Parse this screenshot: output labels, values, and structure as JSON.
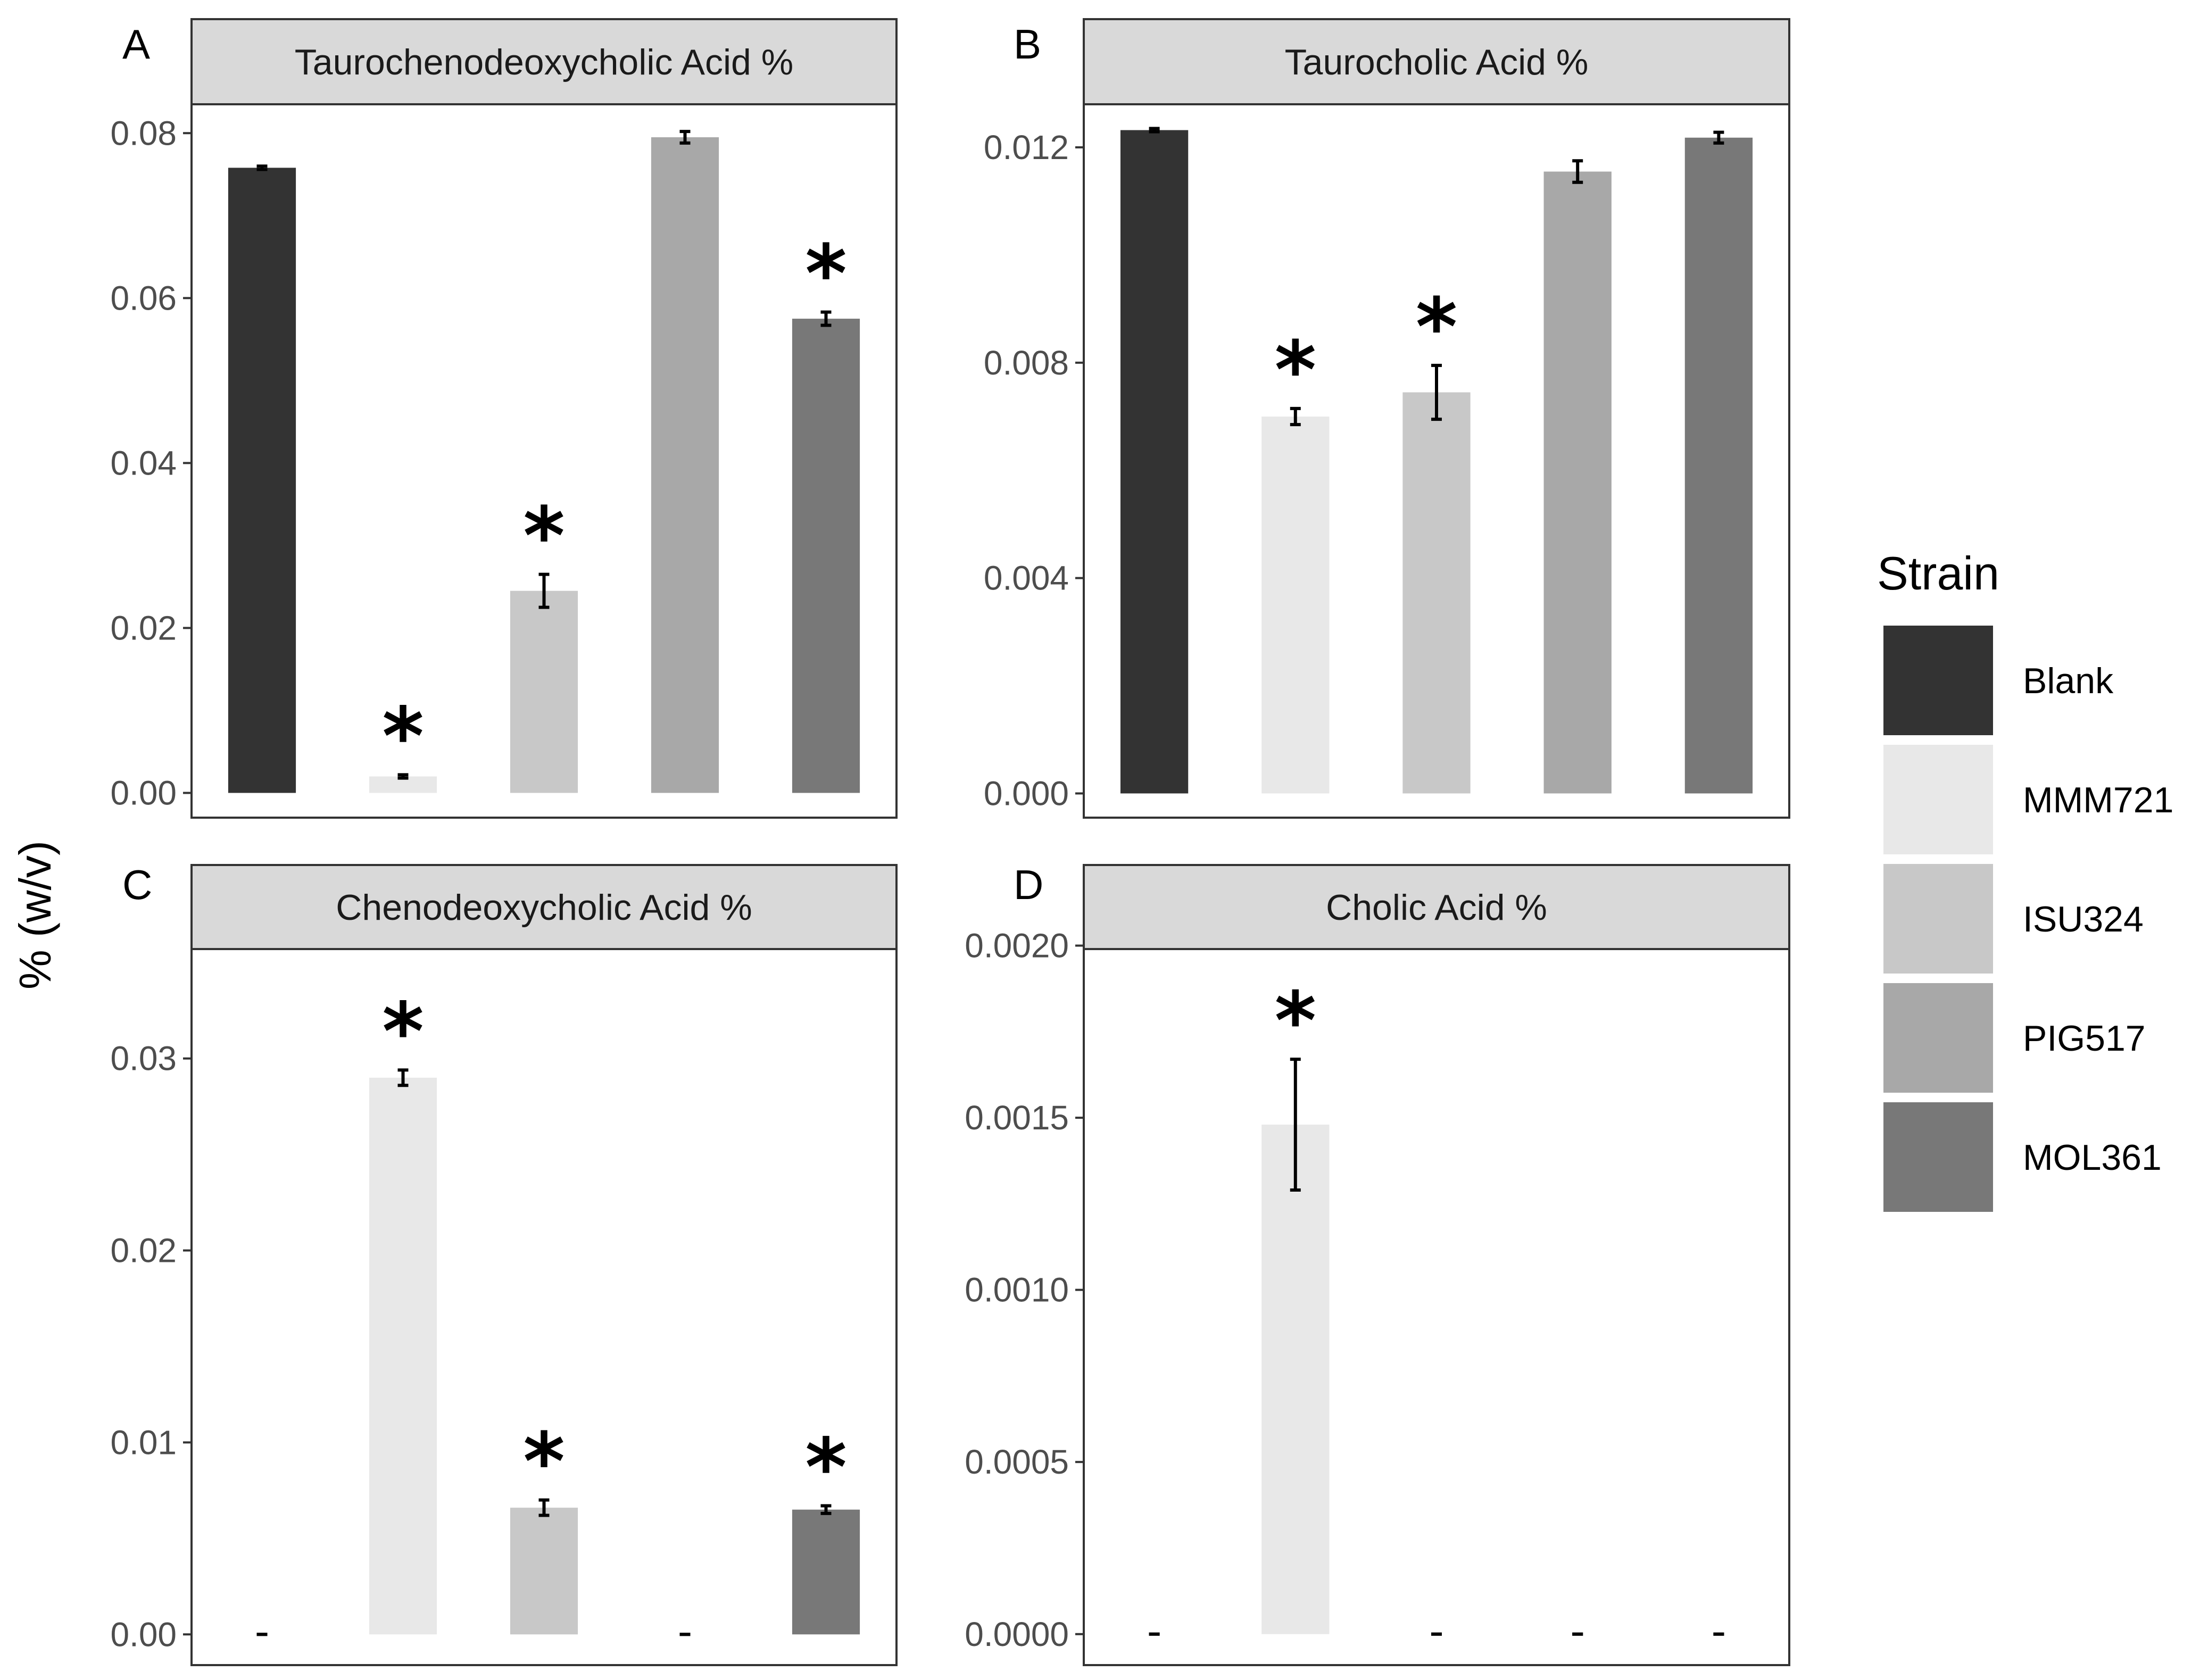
{
  "figure": {
    "ylabel": "% (w/v)",
    "legend": {
      "title": "Strain",
      "items": [
        {
          "label": "Blank",
          "color": "#333333"
        },
        {
          "label": "MMM721",
          "color": "#e8e8e8"
        },
        {
          "label": "ISU324",
          "color": "#c8c8c8"
        },
        {
          "label": "PIG517",
          "color": "#a8a8a8"
        },
        {
          "label": "MOL361",
          "color": "#787878"
        }
      ]
    }
  },
  "chart_data": [
    {
      "type": "bar",
      "panel": "A",
      "title": "Taurochenodeoxycholic Acid %",
      "categories": [
        "Blank",
        "MMM721",
        "ISU324",
        "PIG517",
        "MOL361"
      ],
      "values": [
        0.0758,
        0.002,
        0.0245,
        0.0795,
        0.0575
      ],
      "errors": [
        0.0002,
        0.0002,
        0.002,
        0.0007,
        0.0008
      ],
      "significant": [
        false,
        true,
        true,
        false,
        true
      ],
      "ylim": [
        -0.003,
        0.0835
      ],
      "yticks": [
        0.0,
        0.02,
        0.04,
        0.06,
        0.08
      ],
      "yticklabels": [
        "0.00",
        "0.02",
        "0.04",
        "0.06",
        "0.08"
      ],
      "xlabel": "",
      "ylabel": "% (w/v)"
    },
    {
      "type": "bar",
      "panel": "B",
      "title": "Taurocholic Acid %",
      "categories": [
        "Blank",
        "MMM721",
        "ISU324",
        "PIG517",
        "MOL361"
      ],
      "values": [
        0.01232,
        0.007,
        0.00745,
        0.01155,
        0.01218
      ],
      "errors": [
        3e-05,
        0.00015,
        0.0005,
        0.0002,
        0.0001
      ],
      "significant": [
        false,
        true,
        true,
        false,
        false
      ],
      "ylim": [
        -0.00045,
        0.0128
      ],
      "yticks": [
        0.0,
        0.004,
        0.008,
        0.012
      ],
      "yticklabels": [
        "0.000",
        "0.004",
        "0.008",
        "0.012"
      ],
      "xlabel": "",
      "ylabel": "% (w/v)"
    },
    {
      "type": "bar",
      "panel": "C",
      "title": "Chenodeoxycholic Acid %",
      "categories": [
        "Blank",
        "MMM721",
        "ISU324",
        "PIG517",
        "MOL361"
      ],
      "values": [
        0,
        0.029,
        0.0066,
        0,
        0.0065
      ],
      "errors": [
        0,
        0.0004,
        0.0004,
        0,
        0.0002
      ],
      "significant": [
        false,
        true,
        true,
        false,
        true
      ],
      "ylim": [
        -0.0016,
        0.0357
      ],
      "yticks": [
        0.0,
        0.01,
        0.02,
        0.03
      ],
      "yticklabels": [
        "0.00",
        "0.01",
        "0.02",
        "0.03"
      ],
      "xlabel": "",
      "ylabel": "% (w/v)"
    },
    {
      "type": "bar",
      "panel": "D",
      "title": "Cholic Acid %",
      "categories": [
        "Blank",
        "MMM721",
        "ISU324",
        "PIG517",
        "MOL361"
      ],
      "values": [
        0,
        0.00148,
        0,
        0,
        0
      ],
      "errors": [
        0,
        0.00019,
        0,
        0,
        0
      ],
      "significant": [
        false,
        true,
        false,
        false,
        false
      ],
      "ylim": [
        -9e-05,
        0.00199
      ],
      "yticks": [
        0.0,
        0.0005,
        0.001,
        0.0015,
        0.002
      ],
      "yticklabels": [
        "0.0000",
        "0.0005",
        "0.0010",
        "0.0015",
        "0.0020"
      ],
      "xlabel": "",
      "ylabel": "% (w/v)"
    }
  ]
}
